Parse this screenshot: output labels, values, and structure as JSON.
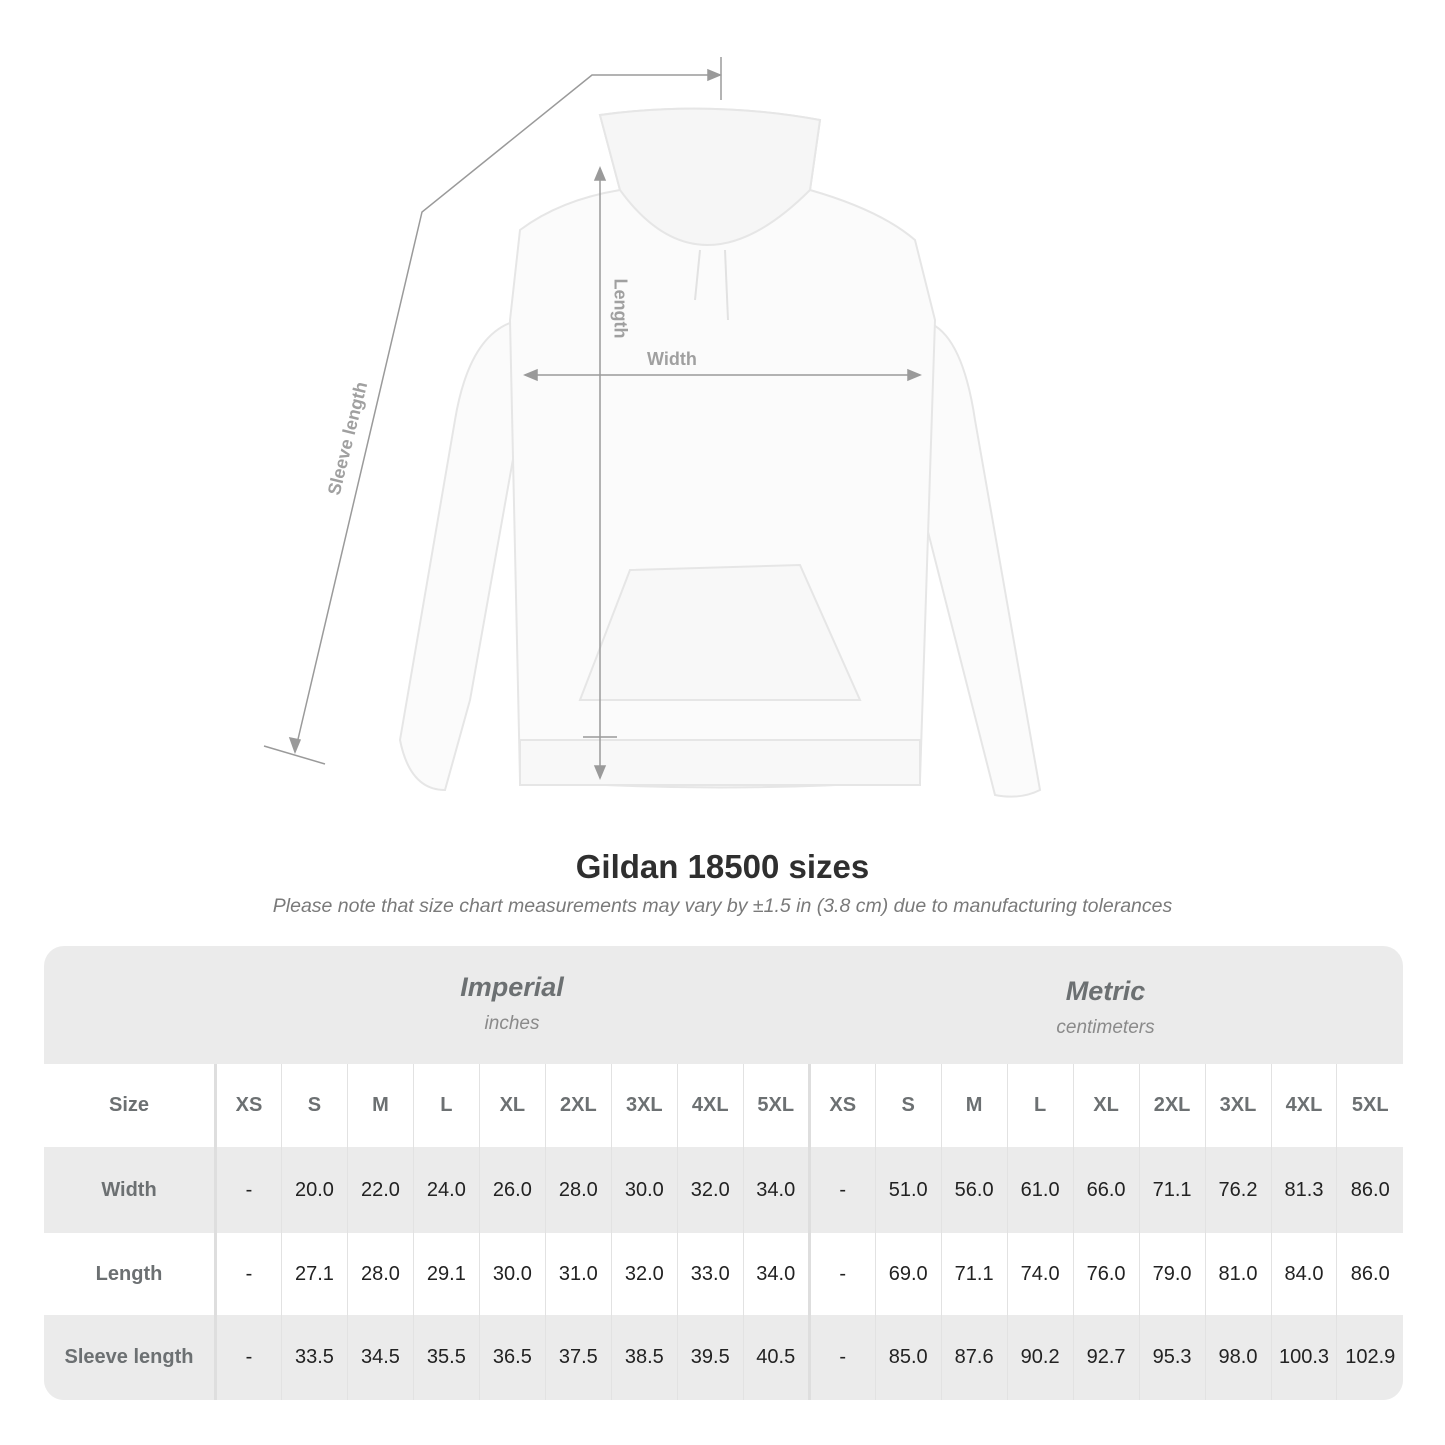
{
  "diagram": {
    "labels": {
      "sleeve": "Sleeve length",
      "length": "Length",
      "width": "Width"
    },
    "garment_color": "#ffffff",
    "line_color": "#9a9a9a"
  },
  "title": "Gildan 18500 sizes",
  "subtitle": "Please note that size chart measurements may vary by ±1.5 in (3.8 cm) due to manufacturing tolerances",
  "imperial": {
    "name": "Imperial",
    "unit": "inches"
  },
  "metric": {
    "name": "Metric",
    "unit": "centimeters"
  },
  "table": {
    "size_label": "Size",
    "sizes": [
      "XS",
      "S",
      "M",
      "L",
      "XL",
      "2XL",
      "3XL",
      "4XL",
      "5XL"
    ],
    "rows": [
      {
        "label": "Width",
        "imperial": [
          "-",
          "20.0",
          "22.0",
          "24.0",
          "26.0",
          "28.0",
          "30.0",
          "32.0",
          "34.0"
        ],
        "metric": [
          "-",
          "51.0",
          "56.0",
          "61.0",
          "66.0",
          "71.1",
          "76.2",
          "81.3",
          "86.0"
        ]
      },
      {
        "label": "Length",
        "imperial": [
          "-",
          "27.1",
          "28.0",
          "29.1",
          "30.0",
          "31.0",
          "32.0",
          "33.0",
          "34.0"
        ],
        "metric": [
          "-",
          "69.0",
          "71.1",
          "74.0",
          "76.0",
          "79.0",
          "81.0",
          "84.0",
          "86.0"
        ]
      },
      {
        "label": "Sleeve length",
        "imperial": [
          "-",
          "33.5",
          "34.5",
          "35.5",
          "36.5",
          "37.5",
          "38.5",
          "39.5",
          "40.5"
        ],
        "metric": [
          "-",
          "85.0",
          "87.6",
          "90.2",
          "92.7",
          "95.3",
          "98.0",
          "100.3",
          "102.9"
        ]
      }
    ]
  }
}
